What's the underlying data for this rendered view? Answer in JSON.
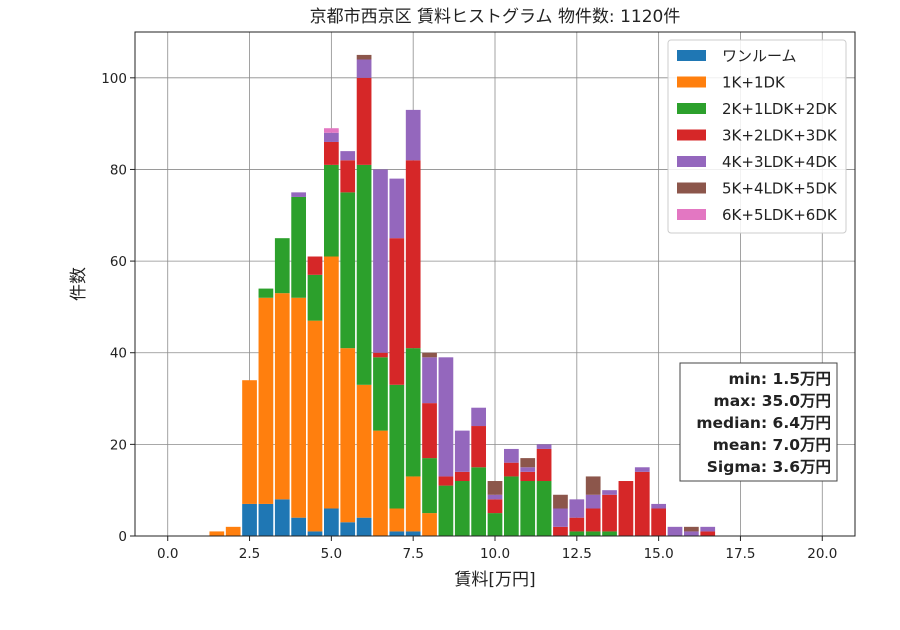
{
  "chart_data": {
    "type": "bar",
    "stacked": true,
    "title": "京都市西京区 賃料ヒストグラム  物件数: 1120件",
    "xlabel": "賃料[万円]",
    "ylabel": "件数",
    "xlim": [
      -1,
      21
    ],
    "ylim": [
      0,
      110
    ],
    "xticks": [
      0.0,
      2.5,
      5.0,
      7.5,
      10.0,
      12.5,
      15.0,
      17.5,
      20.0
    ],
    "xtick_labels": [
      "0.0",
      "2.5",
      "5.0",
      "7.5",
      "10.0",
      "12.5",
      "15.0",
      "17.5",
      "20.0"
    ],
    "yticks": [
      0,
      20,
      40,
      60,
      80,
      100
    ],
    "ytick_labels": [
      "0",
      "20",
      "40",
      "60",
      "80",
      "100"
    ],
    "grid": true,
    "legend_position": "top-right",
    "bin_width": 0.5,
    "x": [
      1.5,
      2.0,
      2.5,
      3.0,
      3.5,
      4.0,
      4.5,
      5.0,
      5.5,
      6.0,
      6.5,
      7.0,
      7.5,
      8.0,
      8.5,
      9.0,
      9.5,
      10.0,
      10.5,
      11.0,
      11.5,
      12.0,
      12.5,
      13.0,
      13.5,
      14.0,
      14.5,
      15.0,
      15.5,
      16.0,
      16.5
    ],
    "series": [
      {
        "name": "ワンルーム",
        "color": "#1f77b4",
        "values": [
          0,
          0,
          7,
          7,
          8,
          4,
          1,
          6,
          3,
          4,
          0,
          1,
          1,
          0,
          0,
          0,
          0,
          0,
          0,
          0,
          0,
          0,
          0,
          0,
          0,
          0,
          0,
          0,
          0,
          0,
          0
        ]
      },
      {
        "name": "1K+1DK",
        "color": "#ff7f0e",
        "values": [
          1,
          2,
          27,
          45,
          45,
          48,
          46,
          55,
          38,
          29,
          23,
          5,
          12,
          5,
          0,
          0,
          0,
          0,
          0,
          0,
          0,
          0,
          0,
          0,
          0,
          0,
          0,
          0,
          0,
          0,
          0
        ]
      },
      {
        "name": "2K+1LDK+2DK",
        "color": "#2ca02c",
        "values": [
          0,
          0,
          0,
          2,
          12,
          22,
          10,
          20,
          34,
          48,
          16,
          27,
          28,
          12,
          11,
          12,
          15,
          5,
          13,
          12,
          12,
          0,
          1,
          1,
          1,
          0,
          0,
          0,
          0,
          0,
          0
        ]
      },
      {
        "name": "3K+2LDK+3DK",
        "color": "#d62728",
        "values": [
          0,
          0,
          0,
          0,
          0,
          0,
          4,
          5,
          7,
          19,
          1,
          32,
          41,
          12,
          2,
          2,
          9,
          3,
          3,
          2,
          7,
          2,
          3,
          5,
          8,
          12,
          14,
          6,
          0,
          0,
          1
        ]
      },
      {
        "name": "4K+3LDK+4DK",
        "color": "#9467bd",
        "values": [
          0,
          0,
          0,
          0,
          0,
          1,
          0,
          2,
          2,
          4,
          40,
          13,
          11,
          10,
          26,
          9,
          4,
          1,
          3,
          1,
          1,
          4,
          4,
          3,
          1,
          0,
          1,
          1,
          2,
          1,
          1
        ]
      },
      {
        "name": "5K+4LDK+5DK",
        "color": "#8c564b",
        "values": [
          0,
          0,
          0,
          0,
          0,
          0,
          0,
          0,
          0,
          1,
          0,
          0,
          0,
          1,
          0,
          0,
          0,
          3,
          0,
          2,
          0,
          3,
          0,
          4,
          0,
          0,
          0,
          0,
          0,
          1,
          0
        ]
      },
      {
        "name": "6K+5LDK+6DK",
        "color": "#e377c2",
        "values": [
          0,
          0,
          0,
          0,
          0,
          0,
          0,
          1,
          0,
          0,
          0,
          0,
          0,
          0,
          0,
          0,
          0,
          0,
          0,
          0,
          0,
          0,
          0,
          0,
          0,
          0,
          0,
          0,
          0,
          0,
          0
        ]
      }
    ],
    "stats": {
      "min": "min: 1.5万円",
      "max": "max: 35.0万円",
      "median": "median: 6.4万円",
      "mean": "mean: 7.0万円",
      "sigma": "Sigma: 3.6万円"
    }
  }
}
